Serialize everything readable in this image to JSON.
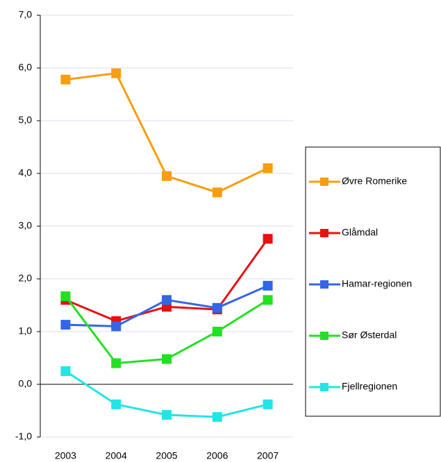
{
  "chart_data": {
    "type": "line",
    "categories": [
      "2003",
      "2004",
      "2005",
      "2006",
      "2007"
    ],
    "series": [
      {
        "name": "Øvre Romerike",
        "color": "#f79d0f",
        "values": [
          5.78,
          5.9,
          3.95,
          3.64,
          4.1
        ]
      },
      {
        "name": "Glåmdal",
        "color": "#e81010",
        "values": [
          1.6,
          1.2,
          1.47,
          1.42,
          2.76
        ]
      },
      {
        "name": "Hamar-regionen",
        "color": "#3366e6",
        "values": [
          1.13,
          1.1,
          1.6,
          1.45,
          1.87
        ]
      },
      {
        "name": "Sør Østerdal",
        "color": "#22e022",
        "values": [
          1.67,
          0.4,
          0.48,
          1.0,
          1.6
        ]
      },
      {
        "name": "Fjellregionen",
        "color": "#22e5e5",
        "values": [
          0.25,
          -0.38,
          -0.58,
          -0.62,
          -0.38
        ]
      }
    ],
    "ylim": [
      -1,
      7
    ],
    "yticks": [
      {
        "value": -1,
        "label": "-1,0"
      },
      {
        "value": 0,
        "label": "0,0"
      },
      {
        "value": 1,
        "label": "1,0"
      },
      {
        "value": 2,
        "label": "2,0"
      },
      {
        "value": 3,
        "label": "3,0"
      },
      {
        "value": 4,
        "label": "4,0"
      },
      {
        "value": 5,
        "label": "5,0"
      },
      {
        "value": 6,
        "label": "6,0"
      },
      {
        "value": 7,
        "label": "7,0"
      }
    ],
    "grid": true
  }
}
